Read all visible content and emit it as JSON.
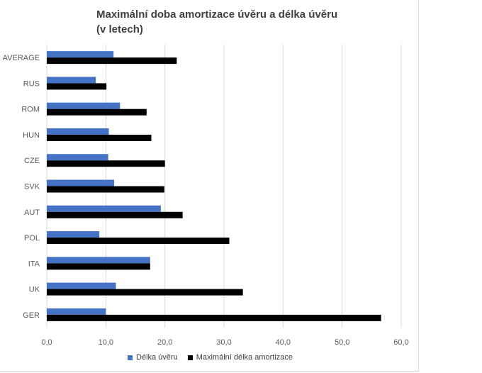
{
  "chart_data": {
    "type": "bar",
    "orientation": "horizontal",
    "title_line1": "Maximální doba amortizace úvěru a délka úvěru",
    "title_line2": "(v letech)",
    "categories": [
      "AVERAGE",
      "RUS",
      "ROM",
      "HUN",
      "CZE",
      "SVK",
      "AUT",
      "POL",
      "ITA",
      "UK",
      "GER"
    ],
    "series": [
      {
        "name": "Délka úvěru",
        "color": "#4472c4",
        "values": [
          11.3,
          8.3,
          12.4,
          10.5,
          10.4,
          11.4,
          19.3,
          8.9,
          17.5,
          11.7,
          10.0
        ]
      },
      {
        "name": "Maximální délka amortizace",
        "color": "#000000",
        "values": [
          22.0,
          10.1,
          16.9,
          17.7,
          20.0,
          19.9,
          23.0,
          30.9,
          17.5,
          33.2,
          56.6
        ]
      }
    ],
    "xlim": [
      0,
      60
    ],
    "xticks": [
      "0,0",
      "10,0",
      "20,0",
      "30,0",
      "40,0",
      "50,0",
      "60,0"
    ],
    "grid": true,
    "legend_position": "bottom"
  }
}
